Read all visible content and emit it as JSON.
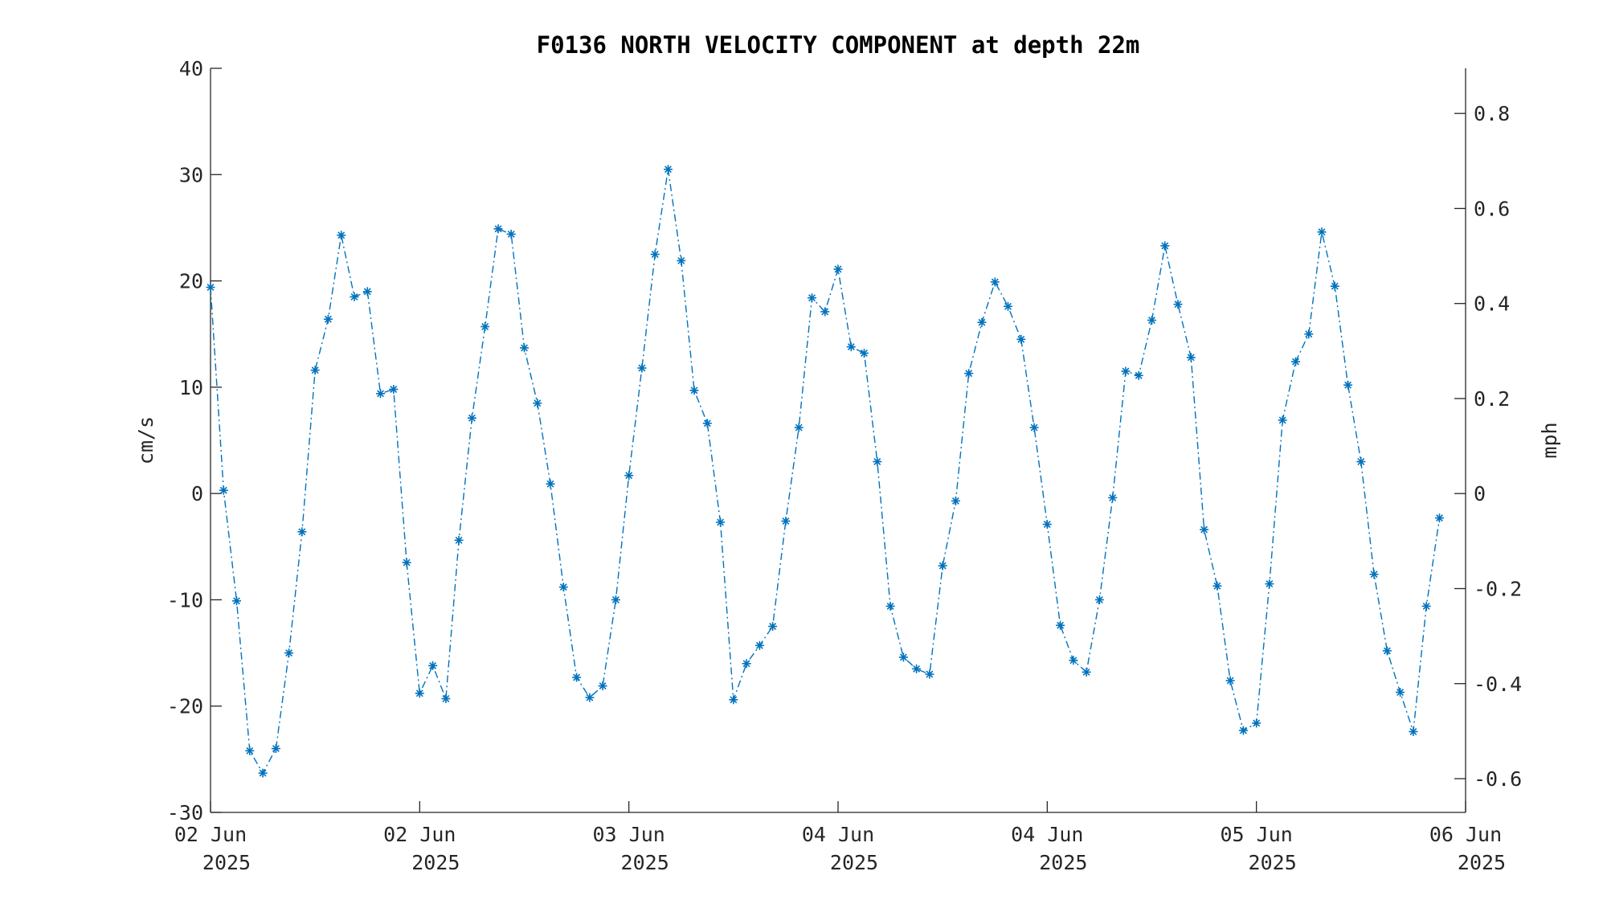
{
  "chart_data": {
    "type": "line",
    "title": "F0136 NORTH VELOCITY COMPONENT at depth 22m",
    "ylabel": "cm/s",
    "ylabel_right": "mph",
    "ylim": [
      -30,
      40
    ],
    "yticks": [
      40,
      30,
      20,
      10,
      0,
      -10,
      -20,
      -30
    ],
    "yticks_right": [
      "0.8",
      "0.6",
      "0.4",
      "0.2",
      "0",
      "-0.2",
      "-0.4",
      "-0.6"
    ],
    "yticks_right_values": [
      0.8,
      0.6,
      0.4,
      0.2,
      0,
      -0.2,
      -0.4,
      -0.6
    ],
    "ylim_right": [
      -0.671,
      0.895
    ],
    "xlim": [
      0,
      96
    ],
    "xticks": [
      {
        "pos": 0,
        "line1": "02 Jun",
        "line2": "2025"
      },
      {
        "pos": 16,
        "line1": "02 Jun",
        "line2": "2025"
      },
      {
        "pos": 32,
        "line1": "03 Jun",
        "line2": "2025"
      },
      {
        "pos": 48,
        "line1": "04 Jun",
        "line2": "2025"
      },
      {
        "pos": 64,
        "line1": "04 Jun",
        "line2": "2025"
      },
      {
        "pos": 80,
        "line1": "05 Jun",
        "line2": "2025"
      },
      {
        "pos": 96,
        "line1": "06 Jun",
        "line2": "2025"
      }
    ],
    "grid": false,
    "series": [
      {
        "color": "#0072BD",
        "line_style": "dash-dot",
        "marker": "asterisk",
        "values": [
          19.4,
          0.3,
          -10.1,
          -24.2,
          -26.3,
          -24.0,
          -15.0,
          -3.6,
          11.6,
          16.4,
          24.3,
          18.5,
          19.0,
          9.4,
          9.8,
          -6.5,
          -18.8,
          -16.2,
          -19.3,
          -4.4,
          7.1,
          15.7,
          24.9,
          24.4,
          13.7,
          8.5,
          0.9,
          -8.8,
          -17.3,
          -19.2,
          -18.1,
          -10.0,
          1.7,
          11.8,
          22.5,
          30.5,
          21.9,
          9.7,
          6.6,
          -2.7,
          -19.4,
          -16.0,
          -14.3,
          -12.5,
          -2.6,
          6.2,
          18.4,
          17.1,
          21.1,
          13.8,
          13.2,
          3.0,
          -10.6,
          -15.4,
          -16.5,
          -17.0,
          -6.8,
          -0.7,
          11.3,
          16.1,
          19.9,
          17.6,
          14.5,
          6.2,
          -2.9,
          -12.4,
          -15.7,
          -16.8,
          -10.0,
          -0.4,
          11.5,
          11.1,
          16.3,
          23.3,
          17.8,
          12.8,
          -3.4,
          -8.7,
          -17.6,
          -22.3,
          -21.6,
          -8.5,
          6.9,
          12.4,
          15.0,
          24.6,
          19.5,
          10.2,
          3.0,
          -7.6,
          -14.8,
          -18.7,
          -22.4,
          -10.6,
          -2.3
        ]
      }
    ]
  }
}
